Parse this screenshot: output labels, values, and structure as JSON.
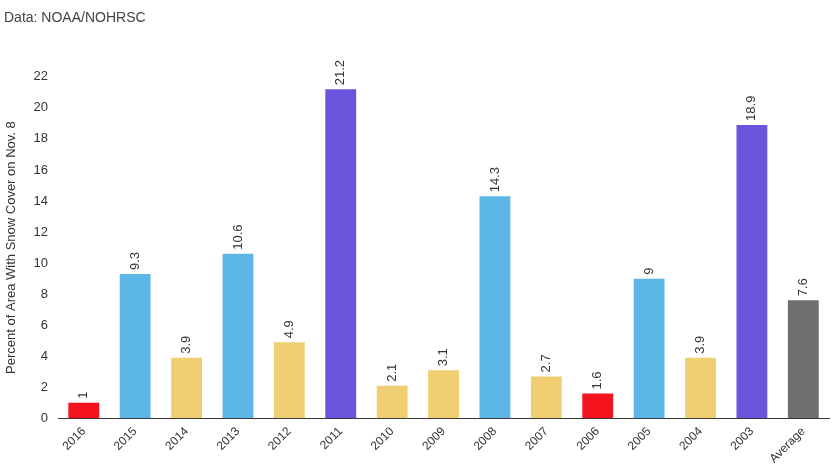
{
  "chart_data": {
    "type": "bar",
    "title": "Data: NOAA/NOHRSC",
    "y_label": "Percent of Area With Snow Cover on Nov. 8",
    "categories": [
      "2016",
      "2015",
      "2014",
      "2013",
      "2012",
      "2011",
      "2010",
      "2009",
      "2008",
      "2007",
      "2006",
      "2005",
      "2004",
      "2003",
      "Average"
    ],
    "values": [
      1,
      9.3,
      3.9,
      10.6,
      4.9,
      21.2,
      2.1,
      3.1,
      14.3,
      2.7,
      1.6,
      9,
      3.9,
      18.9,
      7.6
    ],
    "colors": [
      "#f5141e",
      "#5db7e6",
      "#f0cf72",
      "#5db7e6",
      "#f0cf72",
      "#6b53db",
      "#f0cf72",
      "#f0cf72",
      "#5db7e6",
      "#f0cf72",
      "#f5141e",
      "#5db7e6",
      "#f0cf72",
      "#6b53db",
      "#6f6f6f"
    ],
    "ylim": [
      0,
      22
    ],
    "yticks": [
      0,
      2,
      4,
      6,
      8,
      10,
      12,
      14,
      16,
      18,
      20,
      22
    ],
    "grid": false,
    "data_labels": true
  }
}
